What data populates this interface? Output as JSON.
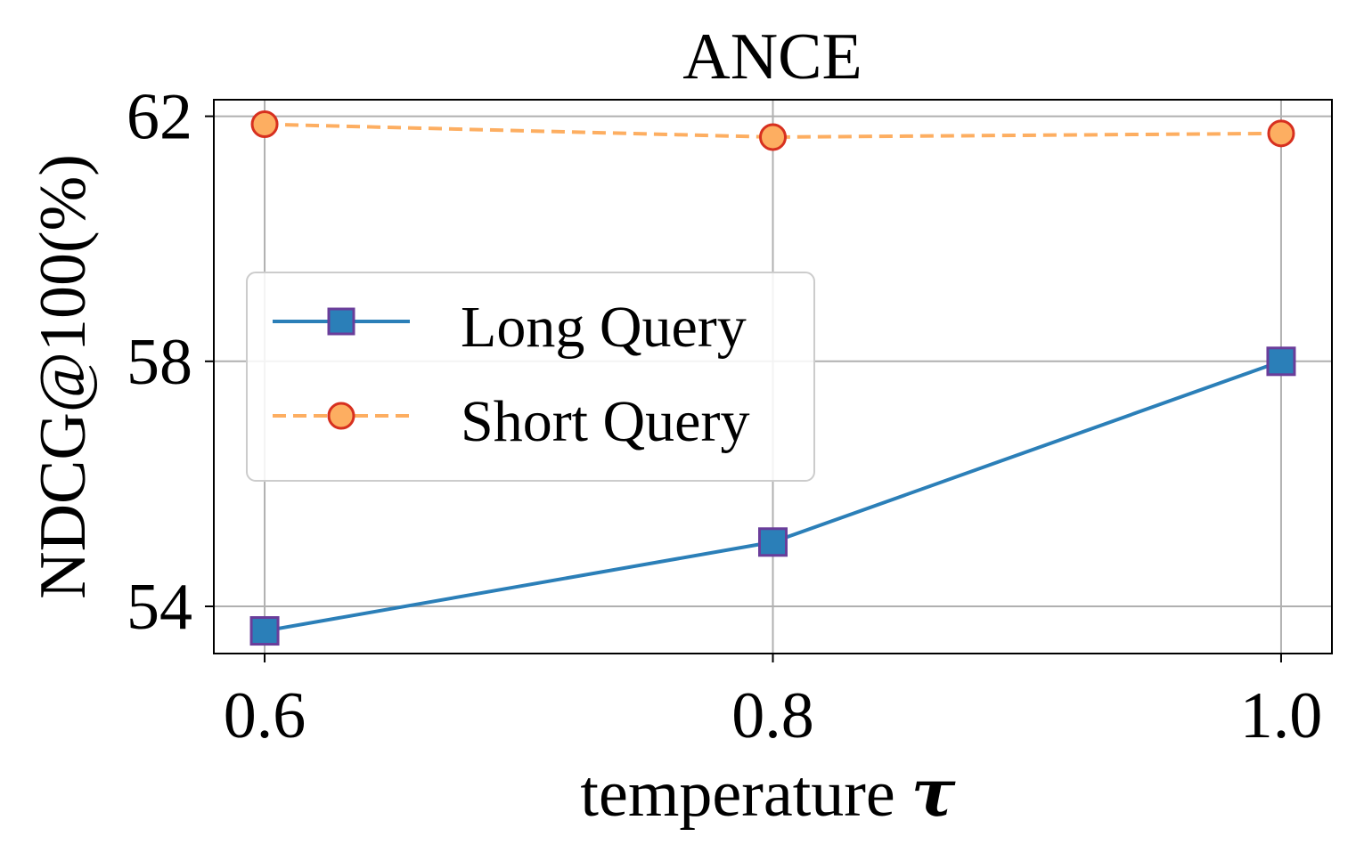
{
  "chart_data": {
    "type": "line",
    "title": "ANCE",
    "xlabel": "temperature",
    "xlabel_symbol": "τ",
    "ylabel": "NDCG@100(%)",
    "x": [
      0.6,
      0.8,
      1.0
    ],
    "x_tick_labels": [
      "0.6",
      "0.8",
      "1.0"
    ],
    "y_ticks": [
      54,
      58,
      62
    ],
    "xlim": [
      0.58,
      1.02
    ],
    "ylim": [
      53.23,
      62.27
    ],
    "grid": true,
    "legend_position": "center-left",
    "series": [
      {
        "name": "Long Query",
        "values": [
          53.6,
          55.05,
          58.0
        ],
        "line_color": "#2b7fb8",
        "line_style": "solid",
        "marker": "square",
        "marker_face": "#2b7fb8",
        "marker_edge": "#6a3d9a"
      },
      {
        "name": "Short Query",
        "values": [
          61.87,
          61.66,
          61.72
        ],
        "line_color": "#fdae61",
        "line_style": "dashed",
        "marker": "circle",
        "marker_face": "#fdae61",
        "marker_edge": "#d7301f"
      }
    ]
  }
}
